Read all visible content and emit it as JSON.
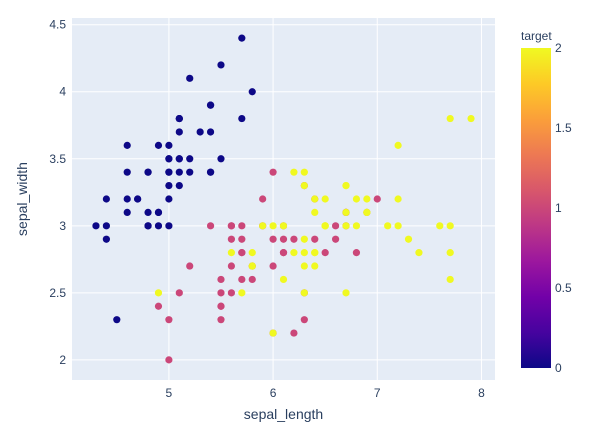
{
  "chart_data": {
    "type": "scatter",
    "title": "",
    "xlabel": "sepal_length",
    "ylabel": "sepal_width",
    "xlim": [
      4.07,
      8.13
    ],
    "ylim": [
      1.85,
      4.55
    ],
    "x_ticks": [
      5,
      6,
      7,
      8
    ],
    "y_ticks": [
      2,
      2.5,
      3,
      3.5,
      4,
      4.5
    ],
    "grid": true,
    "colorbar": {
      "title": "target",
      "range": [
        0,
        2
      ],
      "ticks": [
        0,
        0.5,
        1,
        1.5,
        2
      ],
      "colors": [
        "#0d0887",
        "#46039f",
        "#7201a8",
        "#9c179e",
        "#bd3786",
        "#d8576b",
        "#ed7953",
        "#fb9f3a",
        "#fdca26",
        "#f0f921"
      ]
    },
    "colors": {
      "plot_bg": "#e5ecf6",
      "grid": "#ffffff",
      "tick_text": "#2a3f5f",
      "target_0": "#0d0887",
      "target_1": "#cc4778",
      "target_2": "#f0f921"
    },
    "points": [
      {
        "x": 5.1,
        "y": 3.5,
        "target": 0
      },
      {
        "x": 4.9,
        "y": 3.0,
        "target": 0
      },
      {
        "x": 4.7,
        "y": 3.2,
        "target": 0
      },
      {
        "x": 4.6,
        "y": 3.1,
        "target": 0
      },
      {
        "x": 5.0,
        "y": 3.6,
        "target": 0
      },
      {
        "x": 5.4,
        "y": 3.9,
        "target": 0
      },
      {
        "x": 4.6,
        "y": 3.4,
        "target": 0
      },
      {
        "x": 5.0,
        "y": 3.4,
        "target": 0
      },
      {
        "x": 4.4,
        "y": 2.9,
        "target": 0
      },
      {
        "x": 4.9,
        "y": 3.1,
        "target": 0
      },
      {
        "x": 5.4,
        "y": 3.7,
        "target": 0
      },
      {
        "x": 4.8,
        "y": 3.4,
        "target": 0
      },
      {
        "x": 4.8,
        "y": 3.0,
        "target": 0
      },
      {
        "x": 4.3,
        "y": 3.0,
        "target": 0
      },
      {
        "x": 5.8,
        "y": 4.0,
        "target": 0
      },
      {
        "x": 5.7,
        "y": 4.4,
        "target": 0
      },
      {
        "x": 5.4,
        "y": 3.9,
        "target": 0
      },
      {
        "x": 5.1,
        "y": 3.5,
        "target": 0
      },
      {
        "x": 5.7,
        "y": 3.8,
        "target": 0
      },
      {
        "x": 5.1,
        "y": 3.8,
        "target": 0
      },
      {
        "x": 5.4,
        "y": 3.4,
        "target": 0
      },
      {
        "x": 5.1,
        "y": 3.7,
        "target": 0
      },
      {
        "x": 4.6,
        "y": 3.6,
        "target": 0
      },
      {
        "x": 5.1,
        "y": 3.3,
        "target": 0
      },
      {
        "x": 4.8,
        "y": 3.4,
        "target": 0
      },
      {
        "x": 5.0,
        "y": 3.0,
        "target": 0
      },
      {
        "x": 5.0,
        "y": 3.4,
        "target": 0
      },
      {
        "x": 5.2,
        "y": 3.5,
        "target": 0
      },
      {
        "x": 5.2,
        "y": 3.4,
        "target": 0
      },
      {
        "x": 4.7,
        "y": 3.2,
        "target": 0
      },
      {
        "x": 4.8,
        "y": 3.1,
        "target": 0
      },
      {
        "x": 5.4,
        "y": 3.4,
        "target": 0
      },
      {
        "x": 5.2,
        "y": 4.1,
        "target": 0
      },
      {
        "x": 5.5,
        "y": 4.2,
        "target": 0
      },
      {
        "x": 4.9,
        "y": 3.1,
        "target": 0
      },
      {
        "x": 5.0,
        "y": 3.2,
        "target": 0
      },
      {
        "x": 5.5,
        "y": 3.5,
        "target": 0
      },
      {
        "x": 4.9,
        "y": 3.6,
        "target": 0
      },
      {
        "x": 4.4,
        "y": 3.0,
        "target": 0
      },
      {
        "x": 5.1,
        "y": 3.4,
        "target": 0
      },
      {
        "x": 5.0,
        "y": 3.5,
        "target": 0
      },
      {
        "x": 4.5,
        "y": 2.3,
        "target": 0
      },
      {
        "x": 4.4,
        "y": 3.2,
        "target": 0
      },
      {
        "x": 5.0,
        "y": 3.5,
        "target": 0
      },
      {
        "x": 5.1,
        "y": 3.8,
        "target": 0
      },
      {
        "x": 4.8,
        "y": 3.0,
        "target": 0
      },
      {
        "x": 5.1,
        "y": 3.8,
        "target": 0
      },
      {
        "x": 4.6,
        "y": 3.2,
        "target": 0
      },
      {
        "x": 5.3,
        "y": 3.7,
        "target": 0
      },
      {
        "x": 5.0,
        "y": 3.3,
        "target": 0
      },
      {
        "x": 7.0,
        "y": 3.2,
        "target": 1
      },
      {
        "x": 6.4,
        "y": 3.2,
        "target": 1
      },
      {
        "x": 6.9,
        "y": 3.1,
        "target": 1
      },
      {
        "x": 5.5,
        "y": 2.3,
        "target": 1
      },
      {
        "x": 6.5,
        "y": 2.8,
        "target": 1
      },
      {
        "x": 5.7,
        "y": 2.8,
        "target": 1
      },
      {
        "x": 6.3,
        "y": 3.3,
        "target": 1
      },
      {
        "x": 4.9,
        "y": 2.4,
        "target": 1
      },
      {
        "x": 6.6,
        "y": 2.9,
        "target": 1
      },
      {
        "x": 5.2,
        "y": 2.7,
        "target": 1
      },
      {
        "x": 5.0,
        "y": 2.0,
        "target": 1
      },
      {
        "x": 5.9,
        "y": 3.0,
        "target": 1
      },
      {
        "x": 6.0,
        "y": 2.2,
        "target": 1
      },
      {
        "x": 6.1,
        "y": 2.9,
        "target": 1
      },
      {
        "x": 5.6,
        "y": 2.9,
        "target": 1
      },
      {
        "x": 6.7,
        "y": 3.1,
        "target": 1
      },
      {
        "x": 5.6,
        "y": 3.0,
        "target": 1
      },
      {
        "x": 5.8,
        "y": 2.7,
        "target": 1
      },
      {
        "x": 6.2,
        "y": 2.2,
        "target": 1
      },
      {
        "x": 5.6,
        "y": 2.5,
        "target": 1
      },
      {
        "x": 5.9,
        "y": 3.2,
        "target": 1
      },
      {
        "x": 6.1,
        "y": 2.8,
        "target": 1
      },
      {
        "x": 6.3,
        "y": 2.5,
        "target": 1
      },
      {
        "x": 6.1,
        "y": 2.8,
        "target": 1
      },
      {
        "x": 6.4,
        "y": 2.9,
        "target": 1
      },
      {
        "x": 6.6,
        "y": 3.0,
        "target": 1
      },
      {
        "x": 6.8,
        "y": 2.8,
        "target": 1
      },
      {
        "x": 6.7,
        "y": 3.0,
        "target": 1
      },
      {
        "x": 6.0,
        "y": 2.9,
        "target": 1
      },
      {
        "x": 5.7,
        "y": 2.6,
        "target": 1
      },
      {
        "x": 5.5,
        "y": 2.4,
        "target": 1
      },
      {
        "x": 5.5,
        "y": 2.4,
        "target": 1
      },
      {
        "x": 5.8,
        "y": 2.7,
        "target": 1
      },
      {
        "x": 6.0,
        "y": 2.7,
        "target": 1
      },
      {
        "x": 5.4,
        "y": 3.0,
        "target": 1
      },
      {
        "x": 6.0,
        "y": 3.4,
        "target": 1
      },
      {
        "x": 6.7,
        "y": 3.1,
        "target": 1
      },
      {
        "x": 6.3,
        "y": 2.3,
        "target": 1
      },
      {
        "x": 5.6,
        "y": 3.0,
        "target": 1
      },
      {
        "x": 5.5,
        "y": 2.5,
        "target": 1
      },
      {
        "x": 5.5,
        "y": 2.6,
        "target": 1
      },
      {
        "x": 6.1,
        "y": 3.0,
        "target": 1
      },
      {
        "x": 5.8,
        "y": 2.6,
        "target": 1
      },
      {
        "x": 5.0,
        "y": 2.3,
        "target": 1
      },
      {
        "x": 5.6,
        "y": 2.7,
        "target": 1
      },
      {
        "x": 5.7,
        "y": 3.0,
        "target": 1
      },
      {
        "x": 5.7,
        "y": 2.9,
        "target": 1
      },
      {
        "x": 6.2,
        "y": 2.9,
        "target": 1
      },
      {
        "x": 5.1,
        "y": 2.5,
        "target": 1
      },
      {
        "x": 5.7,
        "y": 2.8,
        "target": 1
      },
      {
        "x": 6.3,
        "y": 3.3,
        "target": 2
      },
      {
        "x": 5.8,
        "y": 2.7,
        "target": 2
      },
      {
        "x": 7.1,
        "y": 3.0,
        "target": 2
      },
      {
        "x": 6.3,
        "y": 2.9,
        "target": 2
      },
      {
        "x": 6.5,
        "y": 3.0,
        "target": 2
      },
      {
        "x": 7.6,
        "y": 3.0,
        "target": 2
      },
      {
        "x": 4.9,
        "y": 2.5,
        "target": 2
      },
      {
        "x": 7.3,
        "y": 2.9,
        "target": 2
      },
      {
        "x": 6.7,
        "y": 2.5,
        "target": 2
      },
      {
        "x": 7.2,
        "y": 3.6,
        "target": 2
      },
      {
        "x": 6.5,
        "y": 3.2,
        "target": 2
      },
      {
        "x": 6.4,
        "y": 2.7,
        "target": 2
      },
      {
        "x": 6.8,
        "y": 3.0,
        "target": 2
      },
      {
        "x": 5.7,
        "y": 2.5,
        "target": 2
      },
      {
        "x": 5.8,
        "y": 2.8,
        "target": 2
      },
      {
        "x": 6.4,
        "y": 3.2,
        "target": 2
      },
      {
        "x": 6.5,
        "y": 3.0,
        "target": 2
      },
      {
        "x": 7.7,
        "y": 3.8,
        "target": 2
      },
      {
        "x": 7.7,
        "y": 2.6,
        "target": 2
      },
      {
        "x": 6.0,
        "y": 2.2,
        "target": 2
      },
      {
        "x": 6.9,
        "y": 3.2,
        "target": 2
      },
      {
        "x": 5.6,
        "y": 2.8,
        "target": 2
      },
      {
        "x": 7.7,
        "y": 2.8,
        "target": 2
      },
      {
        "x": 6.3,
        "y": 2.7,
        "target": 2
      },
      {
        "x": 6.7,
        "y": 3.3,
        "target": 2
      },
      {
        "x": 7.2,
        "y": 3.2,
        "target": 2
      },
      {
        "x": 6.2,
        "y": 2.8,
        "target": 2
      },
      {
        "x": 6.1,
        "y": 3.0,
        "target": 2
      },
      {
        "x": 6.4,
        "y": 2.8,
        "target": 2
      },
      {
        "x": 7.2,
        "y": 3.0,
        "target": 2
      },
      {
        "x": 7.4,
        "y": 2.8,
        "target": 2
      },
      {
        "x": 7.9,
        "y": 3.8,
        "target": 2
      },
      {
        "x": 6.4,
        "y": 2.8,
        "target": 2
      },
      {
        "x": 6.3,
        "y": 2.8,
        "target": 2
      },
      {
        "x": 6.1,
        "y": 2.6,
        "target": 2
      },
      {
        "x": 7.7,
        "y": 3.0,
        "target": 2
      },
      {
        "x": 6.3,
        "y": 3.4,
        "target": 2
      },
      {
        "x": 6.4,
        "y": 3.1,
        "target": 2
      },
      {
        "x": 6.0,
        "y": 3.0,
        "target": 2
      },
      {
        "x": 6.9,
        "y": 3.1,
        "target": 2
      },
      {
        "x": 6.7,
        "y": 3.1,
        "target": 2
      },
      {
        "x": 6.9,
        "y": 3.1,
        "target": 2
      },
      {
        "x": 5.8,
        "y": 2.7,
        "target": 2
      },
      {
        "x": 6.8,
        "y": 3.2,
        "target": 2
      },
      {
        "x": 6.7,
        "y": 3.3,
        "target": 2
      },
      {
        "x": 6.7,
        "y": 3.0,
        "target": 2
      },
      {
        "x": 6.3,
        "y": 2.5,
        "target": 2
      },
      {
        "x": 6.5,
        "y": 3.0,
        "target": 2
      },
      {
        "x": 6.2,
        "y": 3.4,
        "target": 2
      },
      {
        "x": 5.9,
        "y": 3.0,
        "target": 2
      }
    ]
  }
}
